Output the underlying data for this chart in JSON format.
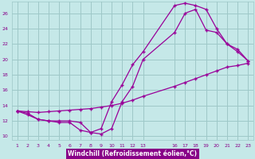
{
  "xlabel": "Windchill (Refroidissement éolien,°C)",
  "bg_color": "#c5e8e8",
  "grid_color": "#9ec8c8",
  "line_color": "#990099",
  "line1_x": [
    1,
    2,
    3,
    4,
    5,
    6,
    7,
    8,
    9,
    10,
    11,
    12,
    13,
    16,
    17,
    18,
    19,
    20,
    21,
    22,
    23
  ],
  "line1_y": [
    13.3,
    13.0,
    12.2,
    12.0,
    11.8,
    11.8,
    10.8,
    10.5,
    11.0,
    14.5,
    16.7,
    19.3,
    21.0,
    27.0,
    27.3,
    27.0,
    26.5,
    24.0,
    22.0,
    21.0,
    19.8
  ],
  "line2_x": [
    1,
    2,
    3,
    4,
    5,
    6,
    7,
    8,
    9,
    10,
    11,
    12,
    13,
    16,
    17,
    18,
    19,
    20,
    21,
    22,
    23
  ],
  "line2_y": [
    13.3,
    12.8,
    12.2,
    12.0,
    12.0,
    12.0,
    11.8,
    10.5,
    10.3,
    11.0,
    14.5,
    16.5,
    20.0,
    23.5,
    26.0,
    26.5,
    23.8,
    23.5,
    22.0,
    21.3,
    19.8
  ],
  "line3_x": [
    1,
    2,
    3,
    4,
    5,
    6,
    7,
    8,
    9,
    10,
    11,
    12,
    13,
    16,
    17,
    18,
    19,
    20,
    21,
    22,
    23
  ],
  "line3_y": [
    13.3,
    13.2,
    13.1,
    13.2,
    13.3,
    13.4,
    13.5,
    13.6,
    13.8,
    14.0,
    14.3,
    14.7,
    15.2,
    16.5,
    17.0,
    17.5,
    18.0,
    18.5,
    19.0,
    19.2,
    19.5
  ],
  "xlim": [
    0.5,
    23.5
  ],
  "ylim": [
    9.5,
    27.5
  ],
  "xticks": [
    1,
    2,
    3,
    4,
    5,
    6,
    7,
    8,
    9,
    10,
    11,
    12,
    13,
    16,
    17,
    18,
    19,
    20,
    21,
    22,
    23
  ],
  "yticks": [
    10,
    12,
    14,
    16,
    18,
    20,
    22,
    24,
    26
  ],
  "xlabel_bg": "#880088",
  "xlabel_color": "#ffffff",
  "tick_color": "#880088",
  "tick_fontsize": 4.5,
  "xlabel_fontsize": 5.5
}
